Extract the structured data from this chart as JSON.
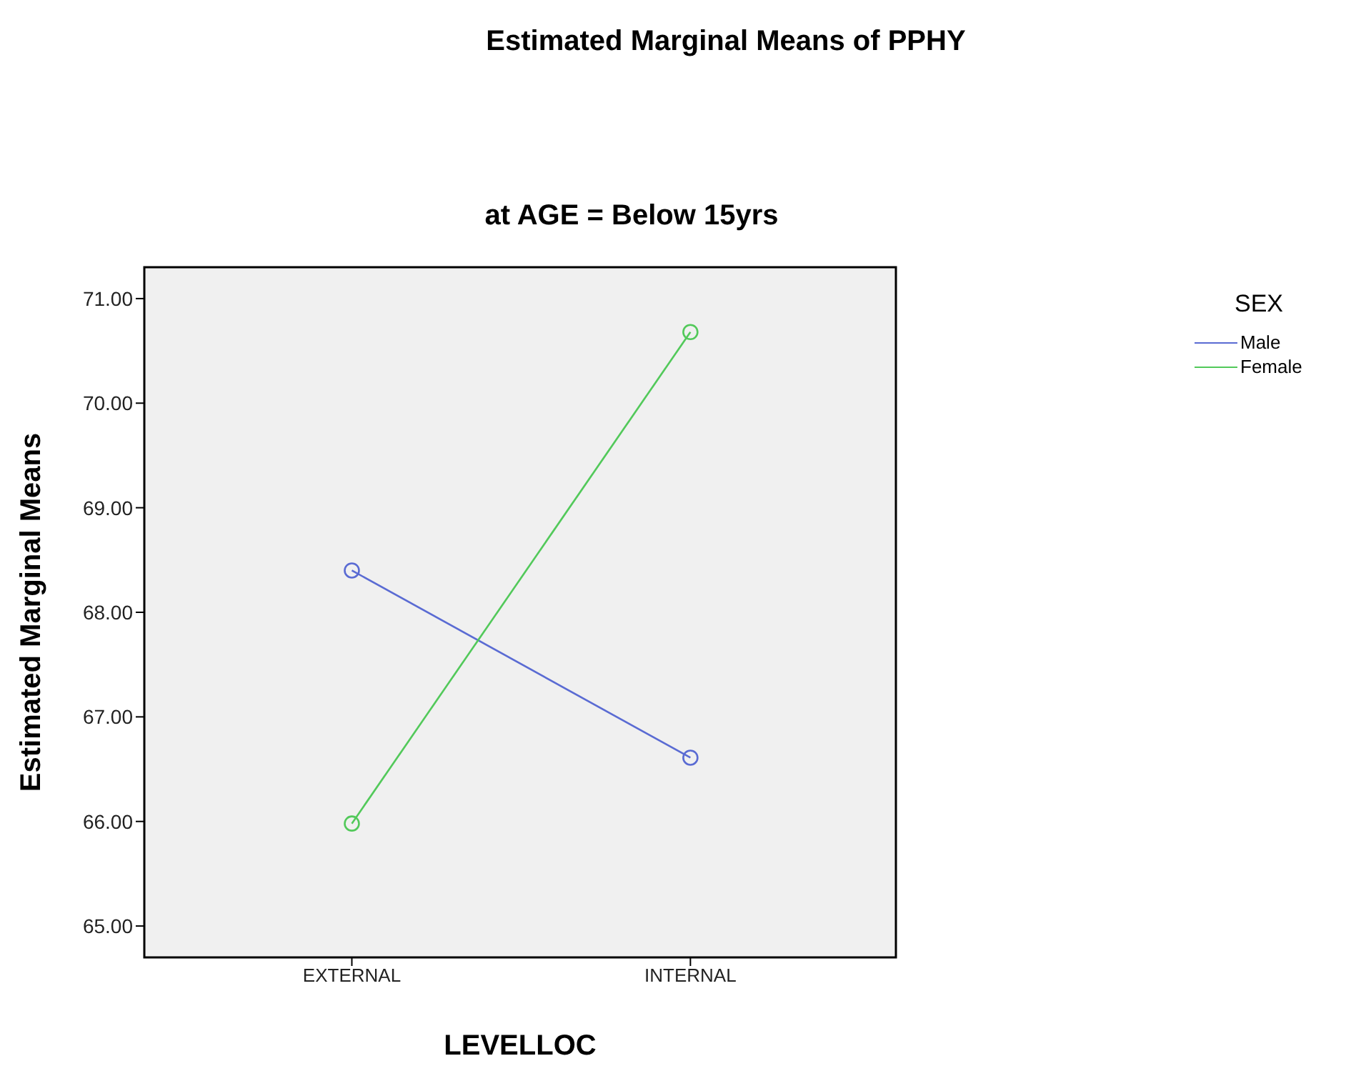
{
  "chart_data": {
    "type": "line",
    "title": "Estimated Marginal Means of PPHY",
    "subtitle": "at AGE = Below 15yrs",
    "xlabel": "LEVELLOC",
    "ylabel": "Estimated Marginal Means",
    "legend_title": "SEX",
    "categories": [
      "EXTERNAL",
      "INTERNAL"
    ],
    "series": [
      {
        "name": "Male",
        "color": "#5a6bd3",
        "values": [
          68.4,
          66.61
        ]
      },
      {
        "name": "Female",
        "color": "#52c95a",
        "values": [
          65.98,
          70.68
        ]
      }
    ],
    "ylim": [
      64.7,
      71.3
    ],
    "yticks": [
      {
        "value": 65,
        "label": "65.00"
      },
      {
        "value": 66,
        "label": "66.00"
      },
      {
        "value": 67,
        "label": "67.00"
      },
      {
        "value": 68,
        "label": "68.00"
      },
      {
        "value": 69,
        "label": "69.00"
      },
      {
        "value": 70,
        "label": "70.00"
      },
      {
        "value": 71,
        "label": "71.00"
      }
    ],
    "grid": false,
    "legend": "top right",
    "marker": "circle",
    "line_style": "solid"
  }
}
